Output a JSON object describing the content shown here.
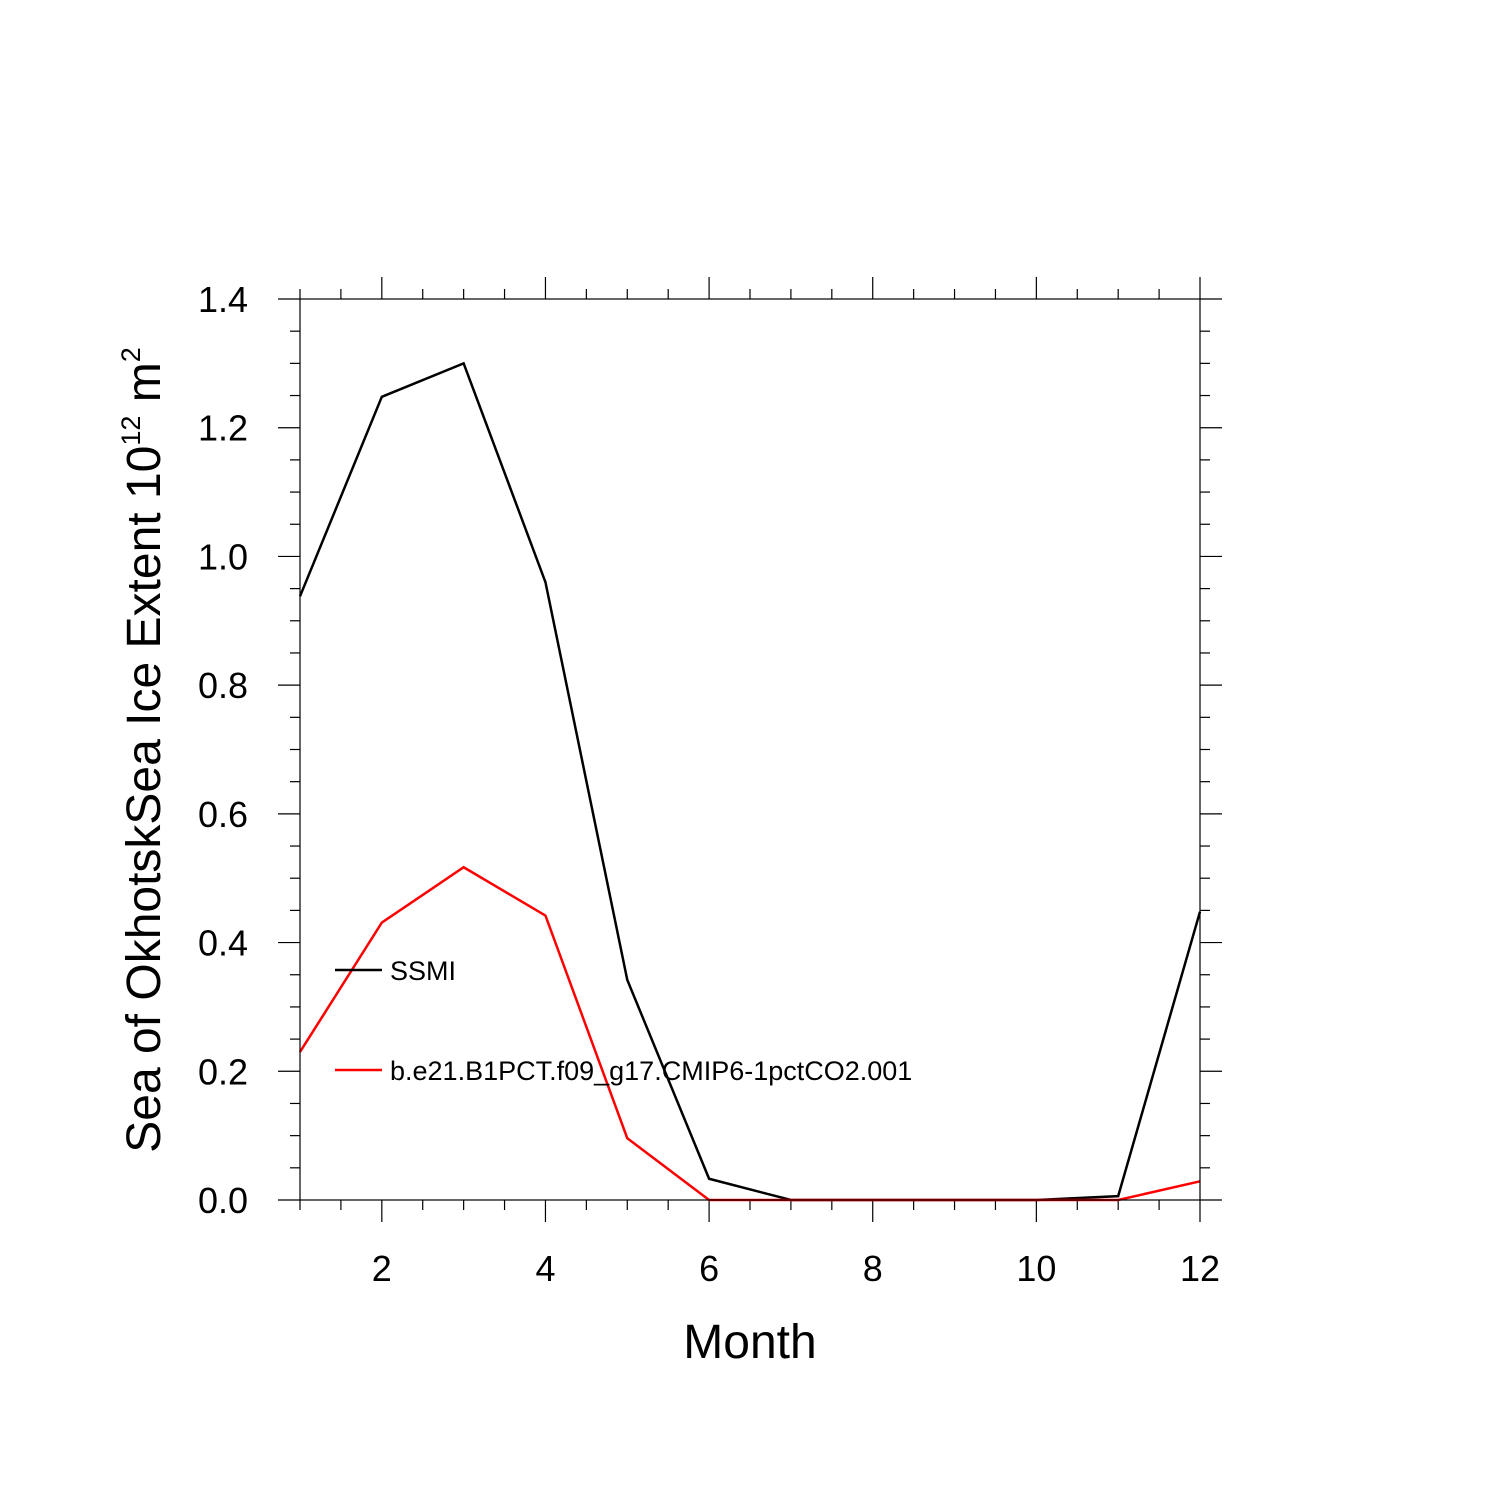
{
  "chart_data": {
    "type": "line",
    "title": "",
    "xlabel": "Month",
    "ylabel_main": "Sea of OkhotskSea Ice Extent 10",
    "ylabel_exp": "12",
    "ylabel_unit": " m",
    "ylabel_unit_exp": "2",
    "xlim": [
      1,
      12
    ],
    "ylim": [
      0,
      1.4
    ],
    "x_major_ticks": [
      2,
      4,
      6,
      8,
      10,
      12
    ],
    "x_minor_step": 0.5,
    "y_major_ticks": [
      0.0,
      0.2,
      0.4,
      0.6,
      0.8,
      1.0,
      1.2,
      1.4
    ],
    "y_tick_labels": [
      "0.0",
      "0.2",
      "0.4",
      "0.6",
      "0.8",
      "1.0",
      "1.2",
      "1.4"
    ],
    "y_minor_step": 0.05,
    "grid": false,
    "legend_position": "lower-left",
    "x": [
      1,
      2,
      3,
      4,
      5,
      6,
      7,
      8,
      9,
      10,
      11,
      12
    ],
    "series": [
      {
        "name": "SSMI",
        "color": "#000000",
        "values": [
          0.938,
          1.248,
          1.3,
          0.96,
          0.342,
          0.033,
          0.0,
          0.0,
          0.0,
          0.0,
          0.006,
          0.448
        ]
      },
      {
        "name": "b.e21.B1PCT.f09_g17.CMIP6-1pctCO2.001",
        "color": "#ff0000",
        "values": [
          0.23,
          0.431,
          0.517,
          0.442,
          0.096,
          0.0,
          0.0,
          0.0,
          0.0,
          0.0,
          0.0,
          0.029
        ]
      }
    ]
  }
}
